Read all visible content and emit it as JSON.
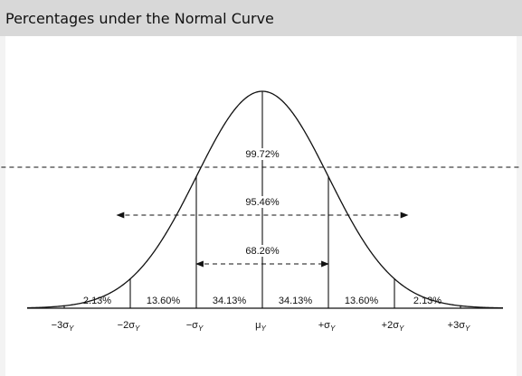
{
  "window": {
    "title": "Percentages under the Normal Curve"
  },
  "diagram": {
    "ranges": [
      {
        "label": "99.72%",
        "from_sigma": -3,
        "to_sigma": 3
      },
      {
        "label": "95.46%",
        "from_sigma": -2,
        "to_sigma": 2
      },
      {
        "label": "68.26%",
        "from_sigma": -1,
        "to_sigma": 1
      }
    ],
    "segments": [
      {
        "label": "2.13%",
        "from_sigma": -3,
        "to_sigma": -2
      },
      {
        "label": "13.60%",
        "from_sigma": -2,
        "to_sigma": -1
      },
      {
        "label": "34.13%",
        "from_sigma": -1,
        "to_sigma": 0
      },
      {
        "label": "34.13%",
        "from_sigma": 0,
        "to_sigma": 1
      },
      {
        "label": "13.60%",
        "from_sigma": 1,
        "to_sigma": 2
      },
      {
        "label": "2.13%",
        "from_sigma": 2,
        "to_sigma": 3
      }
    ],
    "axis_ticks": [
      {
        "sigma": -3,
        "main": "−3σ",
        "sub": "Y"
      },
      {
        "sigma": -2,
        "main": "−2σ",
        "sub": "Y"
      },
      {
        "sigma": -1,
        "main": "−σ",
        "sub": "Y"
      },
      {
        "sigma": 0,
        "main": "μ",
        "sub": "Y"
      },
      {
        "sigma": 1,
        "main": "+σ",
        "sub": "Y"
      },
      {
        "sigma": 2,
        "main": "+2σ",
        "sub": "Y"
      },
      {
        "sigma": 3,
        "main": "+3σ",
        "sub": "Y"
      }
    ],
    "colors": {
      "curve": "#111111",
      "text": "#111111",
      "title_bar": "#d8d8d8"
    }
  }
}
